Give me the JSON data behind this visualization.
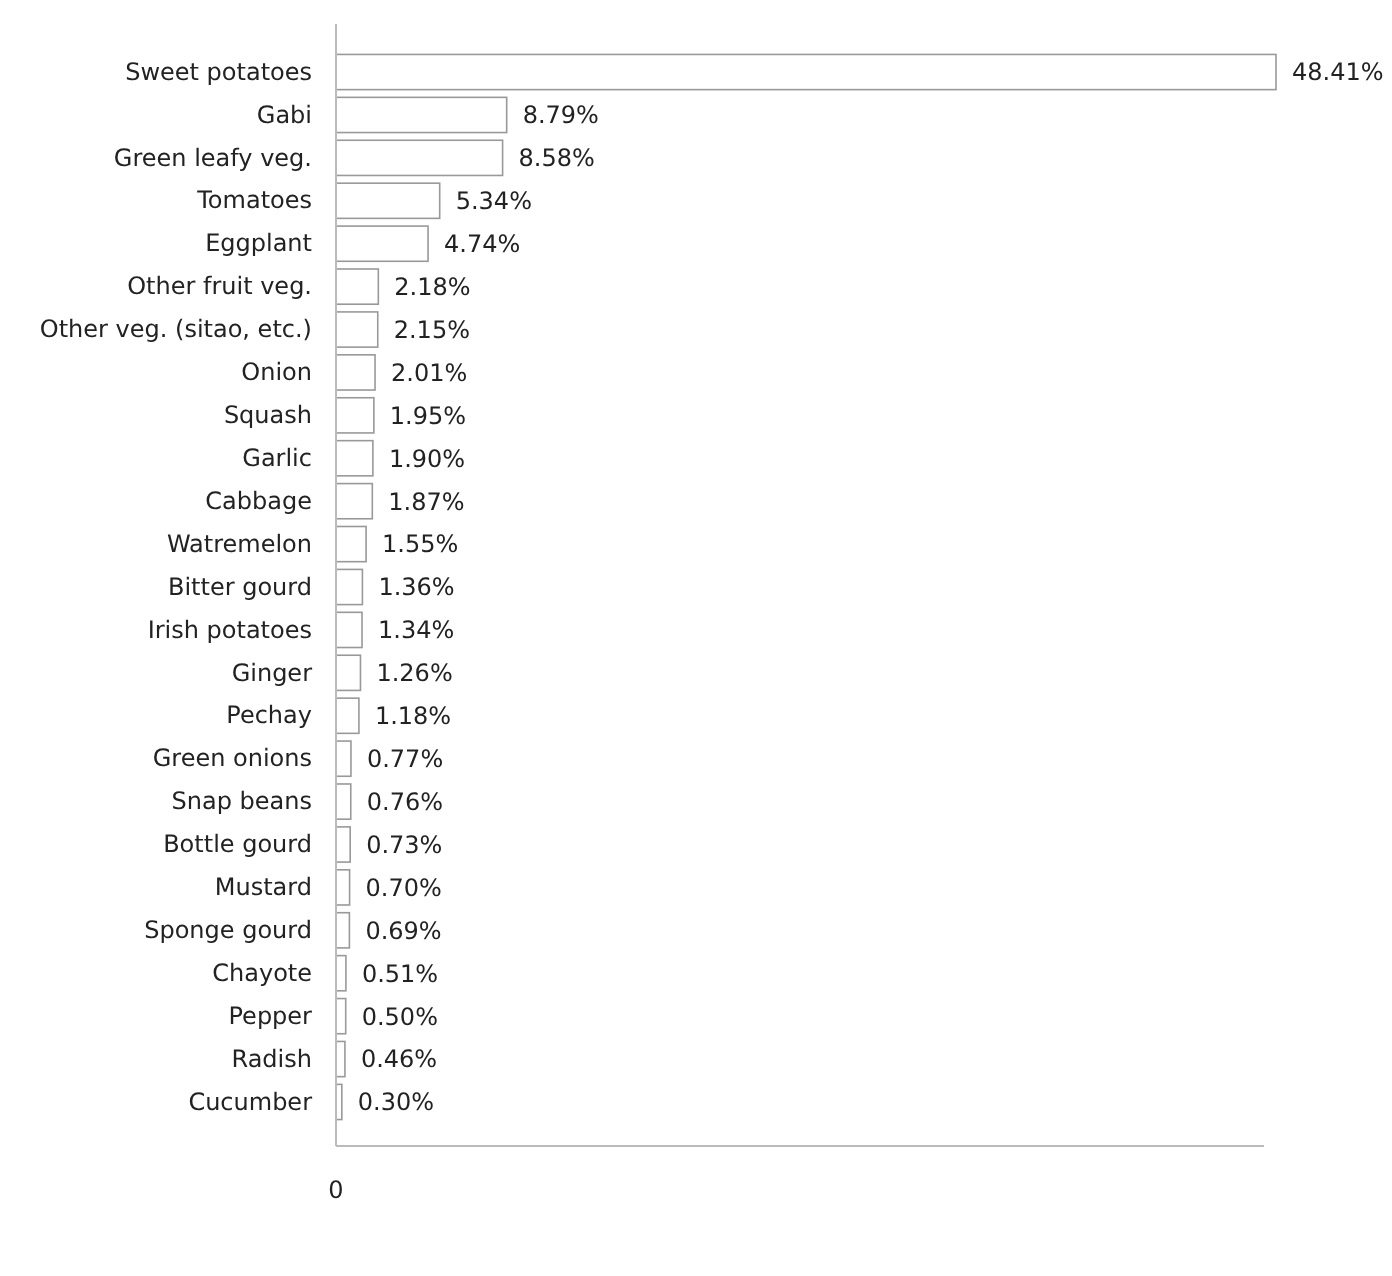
{
  "chart_data": {
    "type": "bar",
    "orientation": "horizontal",
    "categories": [
      "Sweet potatoes",
      "Gabi",
      "Green leafy veg.",
      "Tomatoes",
      "Eggplant",
      "Other fruit veg.",
      "Other veg. (sitao, etc.)",
      "Onion",
      "Squash",
      "Garlic",
      "Cabbage",
      "Watremelon",
      "Bitter gourd",
      "Irish potatoes",
      "Ginger",
      "Pechay",
      "Green onions",
      "Snap beans",
      "Bottle gourd",
      "Mustard",
      "Sponge gourd",
      "Chayote",
      "Pepper",
      "Radish",
      "Cucumber"
    ],
    "values": [
      48.41,
      8.79,
      8.58,
      5.34,
      4.74,
      2.18,
      2.15,
      2.01,
      1.95,
      1.9,
      1.87,
      1.55,
      1.36,
      1.34,
      1.26,
      1.18,
      0.77,
      0.76,
      0.73,
      0.7,
      0.69,
      0.51,
      0.5,
      0.46,
      0.3
    ],
    "value_labels": [
      "48.41%",
      "8.79%",
      "8.58%",
      "5.34%",
      "4.74%",
      "2.18%",
      "2.15%",
      "2.01%",
      "1.95%",
      "1.90%",
      "1.87%",
      "1.55%",
      "1.36%",
      "1.34%",
      "1.26%",
      "1.18%",
      "0.77%",
      "0.76%",
      "0.73%",
      "0.70%",
      "0.69%",
      "0.51%",
      "0.50%",
      "0.46%",
      "0.30%"
    ],
    "color": "#ffffff",
    "annotations": [
      "0"
    ]
  }
}
